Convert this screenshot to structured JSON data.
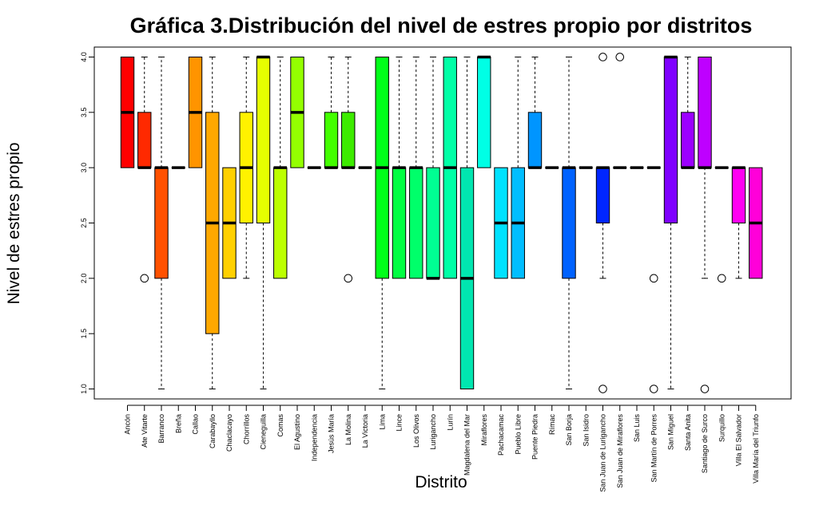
{
  "chart_data": {
    "type": "box",
    "title": "Gráfica 3.Distribución del nivel de estres propio por distritos",
    "xlabel": "Distrito",
    "ylabel": "Nivel de estres propio",
    "ylim": [
      0.91,
      4.09
    ],
    "yticks": [
      1.0,
      1.5,
      2.0,
      2.5,
      3.0,
      3.5,
      4.0
    ],
    "ytick_labels": [
      "1.0",
      "1.5",
      "2.0",
      "2.5",
      "3.0",
      "3.5",
      "4.0"
    ],
    "grid": false,
    "legend": "none",
    "categories": [
      "Ancón",
      "Ate Vitarte",
      "Barranco",
      "Breña",
      "Callao",
      "Carabayllo",
      "Chaclacayo",
      "Chorrillos",
      "Cieneguilla",
      "Comas",
      "El Agustino",
      "Independencia",
      "Jesús María",
      "La Molina",
      "La Victoria",
      "Lima",
      "Lince",
      "Los Olivos",
      "Lurigancho",
      "Lurín",
      "Magdalena del Mar",
      "Miraflores",
      "Pachacamac",
      "Pueblo Libre",
      "Puente Piedra",
      "Rímac",
      "San Borja",
      "San Isidro",
      "San Juan de Lurigancho",
      "San Juan de Miraflores",
      "San Luis",
      "San Martín de Porres",
      "San Miguel",
      "Santa Anita",
      "Santiago de Surco",
      "Surquillo",
      "Villa El Salvador",
      "Villa María del Triunfo"
    ],
    "boxes": [
      {
        "low": 3.0,
        "q1": 3.0,
        "median": 3.5,
        "q3": 4.0,
        "high": 4.0,
        "outliers": [],
        "color": "#FF0000"
      },
      {
        "low": 3.0,
        "q1": 3.0,
        "median": 3.0,
        "q3": 3.5,
        "high": 4.0,
        "outliers": [
          2.0
        ],
        "color": "#FF2900"
      },
      {
        "low": 1.0,
        "q1": 2.0,
        "median": 3.0,
        "q3": 3.0,
        "high": 4.0,
        "outliers": [],
        "color": "#FF5100"
      },
      {
        "low": 3.0,
        "q1": 3.0,
        "median": 3.0,
        "q3": 3.0,
        "high": 3.0,
        "outliers": [],
        "color": "#FF7A00"
      },
      {
        "low": 3.0,
        "q1": 3.0,
        "median": 3.5,
        "q3": 4.0,
        "high": 4.0,
        "outliers": [],
        "color": "#FF9400"
      },
      {
        "low": 1.0,
        "q1": 1.5,
        "median": 2.5,
        "q3": 3.5,
        "high": 4.0,
        "outliers": [],
        "color": "#FFA800"
      },
      {
        "low": 2.0,
        "q1": 2.0,
        "median": 2.5,
        "q3": 3.0,
        "high": 3.0,
        "outliers": [],
        "color": "#FFD000"
      },
      {
        "low": 2.0,
        "q1": 2.5,
        "median": 3.0,
        "q3": 3.5,
        "high": 4.0,
        "outliers": [],
        "color": "#FFF200"
      },
      {
        "low": 1.0,
        "q1": 2.5,
        "median": 4.0,
        "q3": 4.0,
        "high": 4.0,
        "outliers": [],
        "color": "#E6FF00"
      },
      {
        "low": 2.0,
        "q1": 2.0,
        "median": 3.0,
        "q3": 3.0,
        "high": 4.0,
        "outliers": [],
        "color": "#BCFF00"
      },
      {
        "low": 3.0,
        "q1": 3.0,
        "median": 3.5,
        "q3": 4.0,
        "high": 4.0,
        "outliers": [],
        "color": "#94FF00"
      },
      {
        "low": 3.0,
        "q1": 3.0,
        "median": 3.0,
        "q3": 3.0,
        "high": 3.0,
        "outliers": [],
        "color": "#6BFF00"
      },
      {
        "low": 3.0,
        "q1": 3.0,
        "median": 3.0,
        "q3": 3.5,
        "high": 4.0,
        "outliers": [],
        "color": "#43FF00"
      },
      {
        "low": 3.0,
        "q1": 3.0,
        "median": 3.0,
        "q3": 3.5,
        "high": 4.0,
        "outliers": [
          2.0
        ],
        "color": "#3DEB00"
      },
      {
        "low": 3.0,
        "q1": 3.0,
        "median": 3.0,
        "q3": 3.0,
        "high": 3.0,
        "outliers": [],
        "color": "#1AFF00"
      },
      {
        "low": 1.0,
        "q1": 2.0,
        "median": 3.0,
        "q3": 4.0,
        "high": 4.0,
        "outliers": [],
        "color": "#00FF19"
      },
      {
        "low": 2.0,
        "q1": 2.0,
        "median": 3.0,
        "q3": 3.0,
        "high": 4.0,
        "outliers": [],
        "color": "#00FF42"
      },
      {
        "low": 2.0,
        "q1": 2.0,
        "median": 3.0,
        "q3": 3.0,
        "high": 4.0,
        "outliers": [],
        "color": "#00FF6A"
      },
      {
        "low": 2.0,
        "q1": 2.0,
        "median": 2.0,
        "q3": 3.0,
        "high": 4.0,
        "outliers": [],
        "color": "#00FF93"
      },
      {
        "low": 2.0,
        "q1": 2.0,
        "median": 3.0,
        "q3": 4.0,
        "high": 4.0,
        "outliers": [],
        "color": "#00FFA6"
      },
      {
        "low": 1.0,
        "q1": 1.0,
        "median": 2.0,
        "q3": 3.0,
        "high": 4.0,
        "outliers": [],
        "color": "#00E6B0"
      },
      {
        "low": 3.0,
        "q1": 3.0,
        "median": 4.0,
        "q3": 4.0,
        "high": 4.0,
        "outliers": [],
        "color": "#00FFE5"
      },
      {
        "low": 2.0,
        "q1": 2.0,
        "median": 2.5,
        "q3": 3.0,
        "high": 3.0,
        "outliers": [],
        "color": "#00E2FF"
      },
      {
        "low": 2.0,
        "q1": 2.0,
        "median": 2.5,
        "q3": 3.0,
        "high": 4.0,
        "outliers": [],
        "color": "#00BEFF"
      },
      {
        "low": 3.0,
        "q1": 3.0,
        "median": 3.0,
        "q3": 3.5,
        "high": 4.0,
        "outliers": [],
        "color": "#0095FF"
      },
      {
        "low": 3.0,
        "q1": 3.0,
        "median": 3.0,
        "q3": 3.0,
        "high": 3.0,
        "outliers": [],
        "color": "#0072FF"
      },
      {
        "low": 1.0,
        "q1": 2.0,
        "median": 3.0,
        "q3": 3.0,
        "high": 4.0,
        "outliers": [],
        "color": "#0062FF"
      },
      {
        "low": 3.0,
        "q1": 3.0,
        "median": 3.0,
        "q3": 3.0,
        "high": 3.0,
        "outliers": [],
        "color": "#0044FF"
      },
      {
        "low": 2.0,
        "q1": 2.5,
        "median": 3.0,
        "q3": 3.0,
        "high": 3.0,
        "outliers": [
          1.0,
          4.0
        ],
        "color": "#0026FF"
      },
      {
        "low": 3.0,
        "q1": 3.0,
        "median": 3.0,
        "q3": 3.0,
        "high": 3.0,
        "outliers": [
          4.0
        ],
        "color": "#0A00FF"
      },
      {
        "low": 3.0,
        "q1": 3.0,
        "median": 3.0,
        "q3": 3.0,
        "high": 3.0,
        "outliers": [],
        "color": "#3000FF"
      },
      {
        "low": 3.0,
        "q1": 3.0,
        "median": 3.0,
        "q3": 3.0,
        "high": 3.0,
        "outliers": [
          1.0,
          2.0
        ],
        "color": "#5800FF"
      },
      {
        "low": 1.0,
        "q1": 2.5,
        "median": 4.0,
        "q3": 4.0,
        "high": 4.0,
        "outliers": [],
        "color": "#7F00FF"
      },
      {
        "low": 3.0,
        "q1": 3.0,
        "median": 3.0,
        "q3": 3.5,
        "high": 4.0,
        "outliers": [],
        "color": "#9C00FF"
      },
      {
        "low": 2.0,
        "q1": 3.0,
        "median": 3.0,
        "q3": 4.0,
        "high": 4.0,
        "outliers": [
          1.0
        ],
        "color": "#BE00FF"
      },
      {
        "low": 3.0,
        "q1": 3.0,
        "median": 3.0,
        "q3": 3.0,
        "high": 3.0,
        "outliers": [
          2.0
        ],
        "color": "#E000FF"
      },
      {
        "low": 2.0,
        "q1": 2.5,
        "median": 3.0,
        "q3": 3.0,
        "high": 3.0,
        "outliers": [],
        "color": "#FF00F2"
      },
      {
        "low": 2.0,
        "q1": 2.0,
        "median": 2.5,
        "q3": 3.0,
        "high": 3.0,
        "outliers": [],
        "color": "#FF00D9"
      }
    ]
  }
}
